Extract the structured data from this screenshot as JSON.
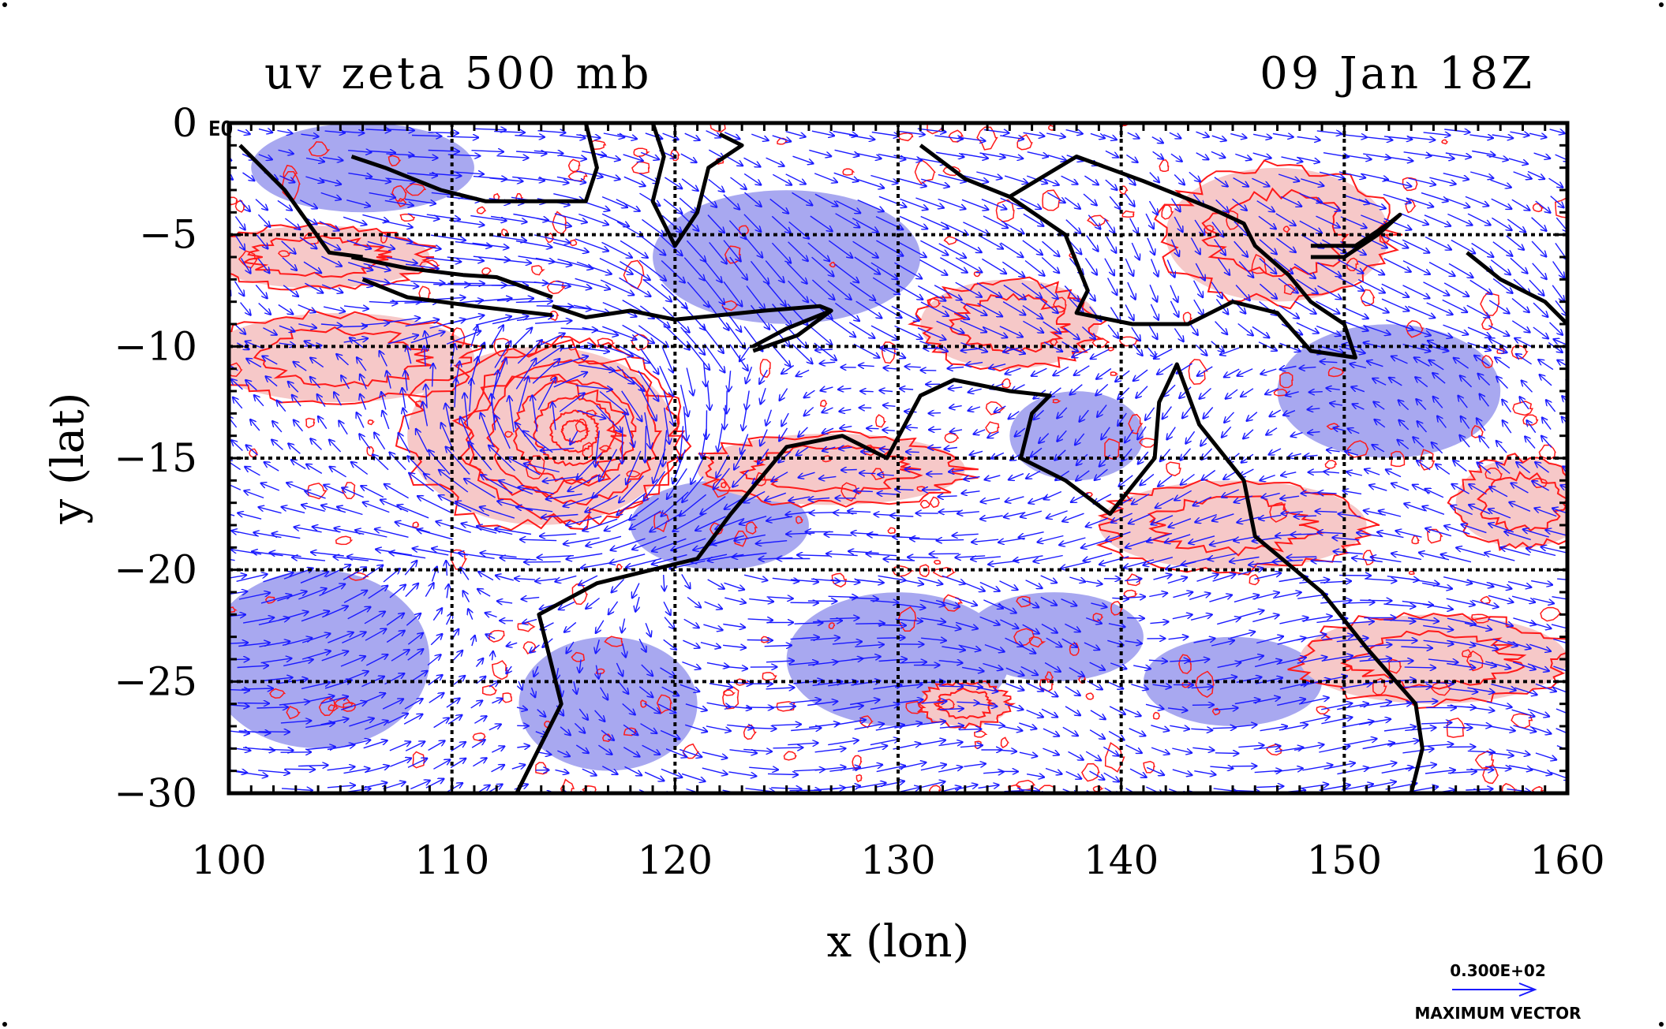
{
  "chart_data": {
    "type": "map",
    "title_left": "uv zeta 500 mb",
    "title_right": "09 Jan 18Z",
    "xlabel": "x (lon)",
    "ylabel": "y (lat)",
    "xlim": [
      100,
      160
    ],
    "ylim": [
      -30,
      0
    ],
    "x_ticks": [
      100,
      110,
      120,
      130,
      140,
      150,
      160
    ],
    "y_ticks": [
      0,
      -5,
      -10,
      -15,
      -20,
      -25,
      -30
    ],
    "x_tick_labels": [
      "100",
      "110",
      "120",
      "130",
      "140",
      "150",
      "160"
    ],
    "y_tick_labels": [
      "0",
      "−5",
      "−10",
      "−15",
      "−20",
      "−25",
      "−30"
    ],
    "corner_label": "EQ",
    "grid": true,
    "legend": {
      "value_label": "0.300E+02",
      "caption": "MAXIMUM VECTOR",
      "placement": "bottom-right"
    },
    "colors": {
      "positive_vorticity_fill": "#f6c8c8",
      "negative_vorticity_fill": "#a8a8f0",
      "contour": "#ff1a1a",
      "vector": "#1a1aff",
      "coastline": "#000000"
    },
    "cyclone_center": {
      "lon": 115.5,
      "lat": -13.8
    },
    "positive_bands": [
      {
        "lon": 104,
        "lat": -6,
        "rx": 5,
        "ry": 1.4
      },
      {
        "lon": 105,
        "lat": -10.5,
        "rx": 6,
        "ry": 2
      },
      {
        "lon": 114,
        "lat": -14,
        "rx": 6,
        "ry": 4
      },
      {
        "lon": 127,
        "lat": -15.5,
        "rx": 6,
        "ry": 1.6
      },
      {
        "lon": 135,
        "lat": -9,
        "rx": 4,
        "ry": 2
      },
      {
        "lon": 147,
        "lat": -5,
        "rx": 5,
        "ry": 3
      },
      {
        "lon": 145,
        "lat": -18,
        "rx": 6,
        "ry": 2
      },
      {
        "lon": 154,
        "lat": -24,
        "rx": 6,
        "ry": 2
      },
      {
        "lon": 158,
        "lat": -17,
        "rx": 3,
        "ry": 2
      },
      {
        "lon": 133,
        "lat": -26,
        "rx": 2,
        "ry": 1
      }
    ],
    "negative_bands": [
      {
        "lon": 106,
        "lat": -2,
        "rx": 5,
        "ry": 2
      },
      {
        "lon": 125,
        "lat": -6,
        "rx": 6,
        "ry": 3
      },
      {
        "lon": 104,
        "lat": -24,
        "rx": 5,
        "ry": 4
      },
      {
        "lon": 117,
        "lat": -26,
        "rx": 4,
        "ry": 3
      },
      {
        "lon": 130,
        "lat": -24,
        "rx": 5,
        "ry": 3
      },
      {
        "lon": 137,
        "lat": -23,
        "rx": 4,
        "ry": 2
      },
      {
        "lon": 152,
        "lat": -12,
        "rx": 5,
        "ry": 3
      },
      {
        "lon": 145,
        "lat": -25,
        "rx": 4,
        "ry": 2
      },
      {
        "lon": 122,
        "lat": -18,
        "rx": 4,
        "ry": 2
      },
      {
        "lon": 138,
        "lat": -14,
        "rx": 3,
        "ry": 2
      }
    ],
    "coastlines": [
      {
        "name": "australia",
        "points": [
          [
            112.9,
            -30
          ],
          [
            114.9,
            -26
          ],
          [
            113.9,
            -22
          ],
          [
            116.5,
            -20.6
          ],
          [
            121,
            -19.5
          ],
          [
            122.5,
            -17.5
          ],
          [
            125,
            -14.5
          ],
          [
            127.5,
            -14
          ],
          [
            129.5,
            -15
          ],
          [
            131,
            -12.2
          ],
          [
            132.5,
            -11.5
          ],
          [
            135,
            -12
          ],
          [
            136.8,
            -12.2
          ],
          [
            136,
            -13
          ],
          [
            135.5,
            -15
          ],
          [
            137.5,
            -16
          ],
          [
            139.5,
            -17.5
          ],
          [
            141.5,
            -15
          ],
          [
            141.7,
            -12.5
          ],
          [
            142.5,
            -10.8
          ],
          [
            143.5,
            -13.5
          ],
          [
            145.5,
            -16
          ],
          [
            146,
            -18.5
          ],
          [
            149,
            -21
          ],
          [
            151,
            -23.5
          ],
          [
            153.2,
            -26
          ],
          [
            153.5,
            -28
          ],
          [
            153,
            -30
          ]
        ]
      },
      {
        "name": "sumatra",
        "points": [
          [
            100.5,
            -1
          ],
          [
            102.5,
            -3
          ],
          [
            104.5,
            -5.8
          ],
          [
            106,
            -6
          ]
        ]
      },
      {
        "name": "java",
        "points": [
          [
            105.5,
            -6
          ],
          [
            108,
            -6.5
          ],
          [
            110.5,
            -6.8
          ],
          [
            112,
            -6.9
          ],
          [
            114.5,
            -7.8
          ]
        ]
      },
      {
        "name": "java-south",
        "points": [
          [
            106,
            -7
          ],
          [
            108,
            -7.8
          ],
          [
            111,
            -8.2
          ],
          [
            114.5,
            -8.6
          ]
        ]
      },
      {
        "name": "borneo",
        "points": [
          [
            105.5,
            -1.5
          ],
          [
            107,
            -2
          ],
          [
            109.5,
            -3
          ],
          [
            111.5,
            -3.5
          ],
          [
            114,
            -3.5
          ],
          [
            116,
            -3.5
          ],
          [
            116.5,
            -2
          ],
          [
            116,
            0
          ]
        ]
      },
      {
        "name": "sulawesi",
        "points": [
          [
            119,
            0
          ],
          [
            119.5,
            -1.5
          ],
          [
            119,
            -3.5
          ],
          [
            120,
            -5.5
          ],
          [
            121,
            -4
          ],
          [
            121.5,
            -2
          ],
          [
            123,
            -1
          ],
          [
            122,
            -0.5
          ]
        ]
      },
      {
        "name": "lesser-sunda",
        "points": [
          [
            114.5,
            -8.2
          ],
          [
            116,
            -8.7
          ],
          [
            118,
            -8.4
          ],
          [
            120,
            -8.8
          ],
          [
            122,
            -8.6
          ],
          [
            124,
            -8.4
          ],
          [
            126.5,
            -8.2
          ],
          [
            127,
            -8.4
          ]
        ]
      },
      {
        "name": "timor",
        "points": [
          [
            123.5,
            -10
          ],
          [
            125,
            -9.2
          ],
          [
            127,
            -8.4
          ],
          [
            125.5,
            -9.5
          ],
          [
            123.5,
            -10.2
          ]
        ]
      },
      {
        "name": "new-guinea",
        "points": [
          [
            131,
            -1
          ],
          [
            133,
            -2.5
          ],
          [
            135,
            -3.3
          ],
          [
            137.5,
            -5
          ],
          [
            138.5,
            -7.5
          ],
          [
            138,
            -8.5
          ],
          [
            140.5,
            -9
          ],
          [
            141.5,
            -9
          ],
          [
            143,
            -9
          ],
          [
            145,
            -8
          ],
          [
            147,
            -8.5
          ],
          [
            148.5,
            -10.2
          ],
          [
            150.5,
            -10.5
          ],
          [
            150,
            -9
          ],
          [
            148.5,
            -8
          ],
          [
            147.5,
            -6.8
          ],
          [
            146,
            -5.5
          ],
          [
            145.5,
            -4.5
          ],
          [
            144,
            -3.8
          ],
          [
            141,
            -2.6
          ],
          [
            138,
            -1.5
          ],
          [
            135,
            -3.3
          ]
        ]
      },
      {
        "name": "new-britain",
        "points": [
          [
            148.5,
            -5.5
          ],
          [
            150.5,
            -5.5
          ],
          [
            152,
            -4.5
          ],
          [
            152.5,
            -4.1
          ],
          [
            151.5,
            -5
          ],
          [
            150,
            -6
          ],
          [
            148.5,
            -6
          ]
        ]
      },
      {
        "name": "solomons",
        "points": [
          [
            155.5,
            -5.8
          ],
          [
            157,
            -7
          ],
          [
            159,
            -8
          ],
          [
            160,
            -9
          ]
        ]
      }
    ]
  }
}
